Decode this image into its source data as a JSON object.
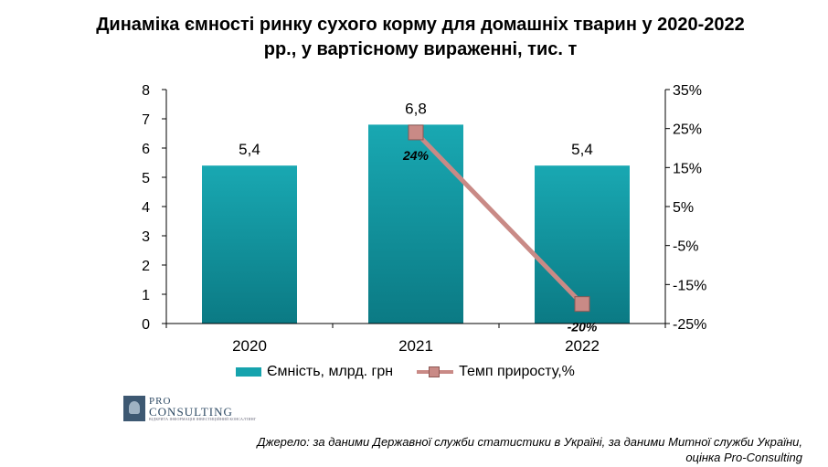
{
  "title_line1": "Динаміка ємності ринку сухого корму для домашніх тварин у 2020-2022",
  "title_line2": "рр., у вартісному вираженні, тис. т",
  "chart_data": {
    "type": "bar",
    "categories": [
      "2020",
      "2021",
      "2022"
    ],
    "series": [
      {
        "name": "Ємність, млрд. грн",
        "type": "bar",
        "axis": "left",
        "values": [
          5.4,
          6.8,
          5.4
        ],
        "value_labels": [
          "5,4",
          "6,8",
          "5,4"
        ],
        "color": "#16a3ad"
      },
      {
        "name": "Темп приросту,%",
        "type": "line",
        "axis": "right",
        "x": [
          "2021",
          "2022"
        ],
        "values": [
          24,
          -20
        ],
        "value_labels": [
          "24%",
          "-20%"
        ],
        "color": "#c98a86"
      }
    ],
    "ylim": [
      0,
      8
    ],
    "y_ticks": [
      "0",
      "1",
      "2",
      "3",
      "4",
      "5",
      "6",
      "7",
      "8"
    ],
    "y2lim": [
      -25,
      35
    ],
    "y2_ticks": [
      "-25%",
      "-15%",
      "-5%",
      "5%",
      "15%",
      "25%",
      "35%"
    ],
    "grid": false,
    "legend_position": "bottom"
  },
  "logo": {
    "line1": "PRO",
    "line2": "CONSULTING",
    "tagline": "ВІДКРИТА ІНФОРМАЦІЯ ІНВЕСТИЦІЙНИЙ КОНСАЛТИНГ"
  },
  "source_line1": "Джерело: за даними Державної служби статистики в Україні, за даними Митної служби України,",
  "source_line2": "оцінка Pro-Consulting"
}
